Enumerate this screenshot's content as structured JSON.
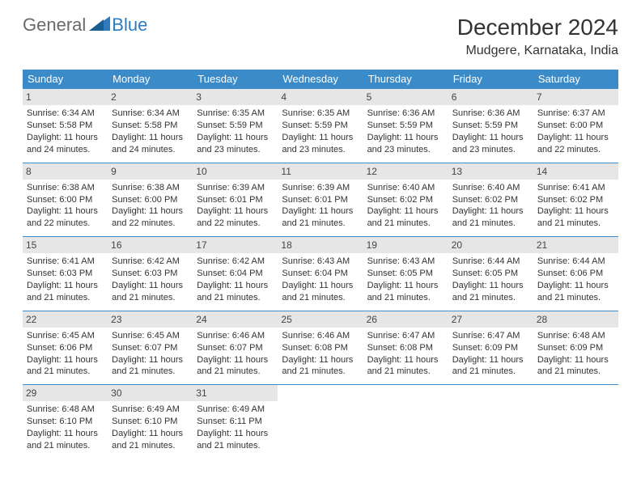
{
  "logo": {
    "text1": "General",
    "text2": "Blue"
  },
  "title": "December 2024",
  "location": "Mudgere, Karnataka, India",
  "weekday_header_bg": "#3b8bc9",
  "weekday_header_color": "#ffffff",
  "daynum_bg": "#e6e6e6",
  "cell_border_color": "#3b8bc9",
  "weekdays": [
    "Sunday",
    "Monday",
    "Tuesday",
    "Wednesday",
    "Thursday",
    "Friday",
    "Saturday"
  ],
  "days": [
    {
      "n": "1",
      "sunrise": "6:34 AM",
      "sunset": "5:58 PM",
      "dl1": "11 hours",
      "dl2": "and 24 minutes."
    },
    {
      "n": "2",
      "sunrise": "6:34 AM",
      "sunset": "5:58 PM",
      "dl1": "11 hours",
      "dl2": "and 24 minutes."
    },
    {
      "n": "3",
      "sunrise": "6:35 AM",
      "sunset": "5:59 PM",
      "dl1": "11 hours",
      "dl2": "and 23 minutes."
    },
    {
      "n": "4",
      "sunrise": "6:35 AM",
      "sunset": "5:59 PM",
      "dl1": "11 hours",
      "dl2": "and 23 minutes."
    },
    {
      "n": "5",
      "sunrise": "6:36 AM",
      "sunset": "5:59 PM",
      "dl1": "11 hours",
      "dl2": "and 23 minutes."
    },
    {
      "n": "6",
      "sunrise": "6:36 AM",
      "sunset": "5:59 PM",
      "dl1": "11 hours",
      "dl2": "and 23 minutes."
    },
    {
      "n": "7",
      "sunrise": "6:37 AM",
      "sunset": "6:00 PM",
      "dl1": "11 hours",
      "dl2": "and 22 minutes."
    },
    {
      "n": "8",
      "sunrise": "6:38 AM",
      "sunset": "6:00 PM",
      "dl1": "11 hours",
      "dl2": "and 22 minutes."
    },
    {
      "n": "9",
      "sunrise": "6:38 AM",
      "sunset": "6:00 PM",
      "dl1": "11 hours",
      "dl2": "and 22 minutes."
    },
    {
      "n": "10",
      "sunrise": "6:39 AM",
      "sunset": "6:01 PM",
      "dl1": "11 hours",
      "dl2": "and 22 minutes."
    },
    {
      "n": "11",
      "sunrise": "6:39 AM",
      "sunset": "6:01 PM",
      "dl1": "11 hours",
      "dl2": "and 21 minutes."
    },
    {
      "n": "12",
      "sunrise": "6:40 AM",
      "sunset": "6:02 PM",
      "dl1": "11 hours",
      "dl2": "and 21 minutes."
    },
    {
      "n": "13",
      "sunrise": "6:40 AM",
      "sunset": "6:02 PM",
      "dl1": "11 hours",
      "dl2": "and 21 minutes."
    },
    {
      "n": "14",
      "sunrise": "6:41 AM",
      "sunset": "6:02 PM",
      "dl1": "11 hours",
      "dl2": "and 21 minutes."
    },
    {
      "n": "15",
      "sunrise": "6:41 AM",
      "sunset": "6:03 PM",
      "dl1": "11 hours",
      "dl2": "and 21 minutes."
    },
    {
      "n": "16",
      "sunrise": "6:42 AM",
      "sunset": "6:03 PM",
      "dl1": "11 hours",
      "dl2": "and 21 minutes."
    },
    {
      "n": "17",
      "sunrise": "6:42 AM",
      "sunset": "6:04 PM",
      "dl1": "11 hours",
      "dl2": "and 21 minutes."
    },
    {
      "n": "18",
      "sunrise": "6:43 AM",
      "sunset": "6:04 PM",
      "dl1": "11 hours",
      "dl2": "and 21 minutes."
    },
    {
      "n": "19",
      "sunrise": "6:43 AM",
      "sunset": "6:05 PM",
      "dl1": "11 hours",
      "dl2": "and 21 minutes."
    },
    {
      "n": "20",
      "sunrise": "6:44 AM",
      "sunset": "6:05 PM",
      "dl1": "11 hours",
      "dl2": "and 21 minutes."
    },
    {
      "n": "21",
      "sunrise": "6:44 AM",
      "sunset": "6:06 PM",
      "dl1": "11 hours",
      "dl2": "and 21 minutes."
    },
    {
      "n": "22",
      "sunrise": "6:45 AM",
      "sunset": "6:06 PM",
      "dl1": "11 hours",
      "dl2": "and 21 minutes."
    },
    {
      "n": "23",
      "sunrise": "6:45 AM",
      "sunset": "6:07 PM",
      "dl1": "11 hours",
      "dl2": "and 21 minutes."
    },
    {
      "n": "24",
      "sunrise": "6:46 AM",
      "sunset": "6:07 PM",
      "dl1": "11 hours",
      "dl2": "and 21 minutes."
    },
    {
      "n": "25",
      "sunrise": "6:46 AM",
      "sunset": "6:08 PM",
      "dl1": "11 hours",
      "dl2": "and 21 minutes."
    },
    {
      "n": "26",
      "sunrise": "6:47 AM",
      "sunset": "6:08 PM",
      "dl1": "11 hours",
      "dl2": "and 21 minutes."
    },
    {
      "n": "27",
      "sunrise": "6:47 AM",
      "sunset": "6:09 PM",
      "dl1": "11 hours",
      "dl2": "and 21 minutes."
    },
    {
      "n": "28",
      "sunrise": "6:48 AM",
      "sunset": "6:09 PM",
      "dl1": "11 hours",
      "dl2": "and 21 minutes."
    },
    {
      "n": "29",
      "sunrise": "6:48 AM",
      "sunset": "6:10 PM",
      "dl1": "11 hours",
      "dl2": "and 21 minutes."
    },
    {
      "n": "30",
      "sunrise": "6:49 AM",
      "sunset": "6:10 PM",
      "dl1": "11 hours",
      "dl2": "and 21 minutes."
    },
    {
      "n": "31",
      "sunrise": "6:49 AM",
      "sunset": "6:11 PM",
      "dl1": "11 hours",
      "dl2": "and 21 minutes."
    }
  ],
  "labels": {
    "sunrise_prefix": "Sunrise: ",
    "sunset_prefix": "Sunset: ",
    "daylight_prefix": "Daylight: "
  },
  "trailing_empty_cells": 4
}
